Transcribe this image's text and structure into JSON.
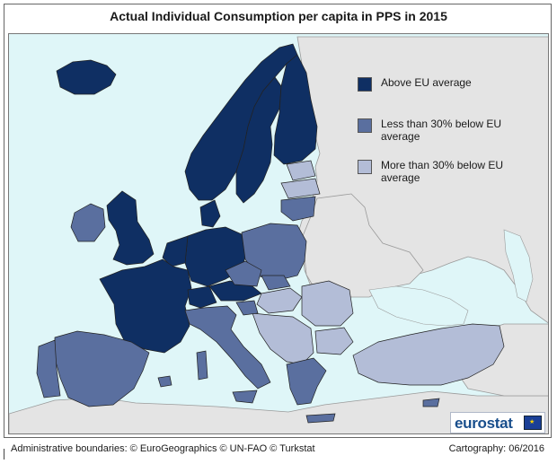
{
  "title": "Actual Individual Consumption per capita in PPS in 2015",
  "legend": {
    "items": [
      {
        "label": "Above EU average",
        "color": "#0f2f63"
      },
      {
        "label": "Less than 30% below EU average",
        "color": "#5a6f9f"
      },
      {
        "label": "More than 30% below EU average",
        "color": "#b3bdd7"
      }
    ]
  },
  "colors": {
    "sea": "#dff6f8",
    "non_member_land": "#e4e4e4",
    "border": "#2a2a2a"
  },
  "logo": {
    "text": "eurostat"
  },
  "footer": {
    "left": "Administrative boundaries: © EuroGeographics © UN-FAO © Turkstat",
    "right": "Cartography: 06/2016"
  }
}
